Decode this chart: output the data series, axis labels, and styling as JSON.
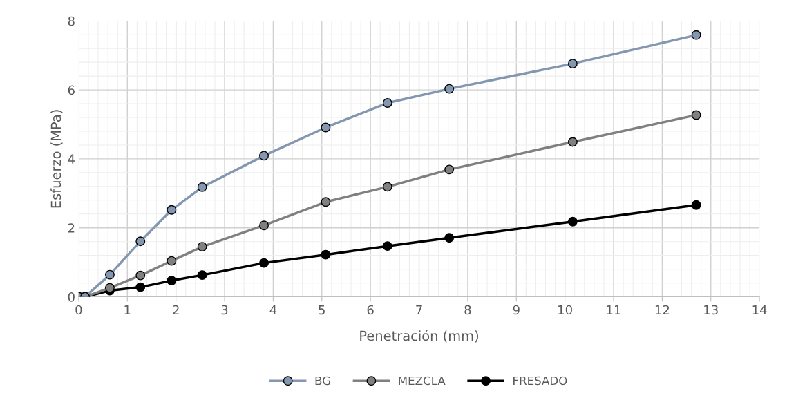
{
  "chart_data": {
    "type": "line",
    "xlabel": "Penetración (mm)",
    "ylabel": "Esfuerzo (MPa)",
    "x": [
      0,
      0.13,
      0.64,
      1.27,
      1.91,
      2.54,
      3.81,
      5.08,
      6.35,
      7.62,
      10.16,
      12.7
    ],
    "series": [
      {
        "name": "BG",
        "color": "#8497b0",
        "values": [
          0,
          0,
          0.64,
          1.61,
          2.52,
          3.18,
          4.09,
          4.91,
          5.62,
          6.03,
          6.76,
          7.59
        ]
      },
      {
        "name": "MEZCLA",
        "color": "#808080",
        "values": [
          0,
          0,
          0.26,
          0.62,
          1.04,
          1.45,
          2.07,
          2.75,
          3.19,
          3.69,
          4.49,
          5.27
        ]
      },
      {
        "name": "FRESADO",
        "color": "#000000",
        "values": [
          0,
          0,
          0.18,
          0.28,
          0.47,
          0.63,
          0.98,
          1.22,
          1.47,
          1.71,
          2.18,
          2.66
        ]
      }
    ],
    "xlim": [
      0,
      14
    ],
    "xticks": [
      0,
      1,
      2,
      3,
      4,
      5,
      6,
      7,
      8,
      9,
      10,
      11,
      12,
      13,
      14
    ],
    "ylim": [
      0,
      8
    ],
    "yticks": [
      0,
      2,
      4,
      6,
      8
    ],
    "grid": true,
    "legend": "bottom",
    "marker": "circle",
    "line_style": "solid"
  }
}
